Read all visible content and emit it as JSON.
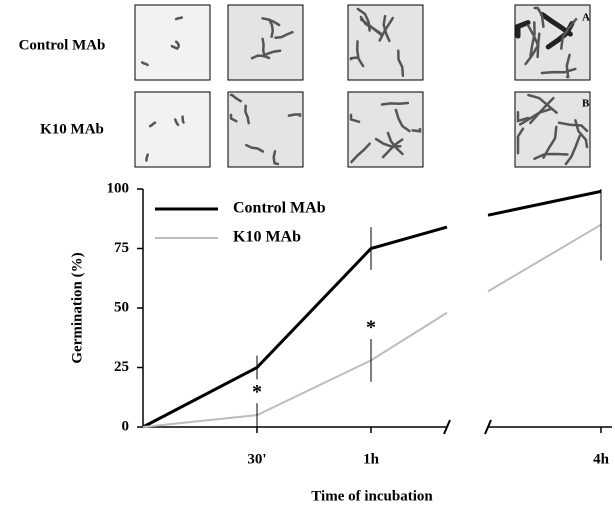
{
  "micrographs": {
    "rows": [
      "Control MAb",
      "K10 MAb"
    ],
    "panel_labels": [
      "A",
      "B"
    ]
  },
  "chart_data": {
    "type": "line",
    "categories": [
      null,
      "30'",
      "1h",
      null,
      null,
      "4h"
    ],
    "series": [
      {
        "name": "Control MAb",
        "color": "#000000",
        "values": [
          0,
          25,
          75,
          84,
          89,
          99
        ],
        "errors": [
          null,
          5,
          9,
          null,
          null,
          null
        ],
        "marks": [
          null,
          null,
          null,
          null,
          null,
          null
        ]
      },
      {
        "name": "K10 MAb",
        "color": "#bdbdbd",
        "values": [
          0,
          5,
          28,
          48,
          57,
          85
        ],
        "errors": [
          null,
          5,
          9,
          null,
          null,
          15
        ],
        "marks": [
          null,
          "*",
          "*",
          null,
          null,
          null
        ]
      }
    ],
    "ylim": [
      0,
      100
    ],
    "yticks": [
      0,
      25,
      50,
      75,
      100
    ],
    "ylabel": "Germination (%)",
    "xlabel": "Time of incubation",
    "legend": "upper left"
  }
}
